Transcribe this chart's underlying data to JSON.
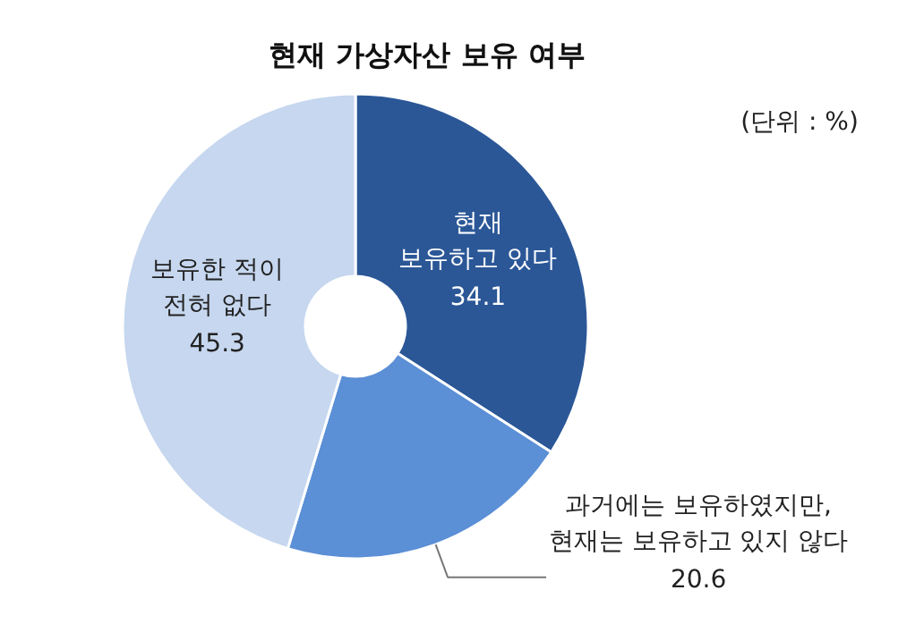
{
  "chart_data": {
    "type": "donut",
    "title": "현재 가상자산 보유 여부",
    "annotations": [
      "(단위 : %)"
    ],
    "categories": [
      "현재\n보유하고 있다",
      "과거에는 보유하였지만,\n현재는 보유하고 있지 않다",
      "보유한 적이\n전혀 없다"
    ],
    "values": [
      34.1,
      20.6,
      45.3
    ],
    "colors": [
      "#2b5797",
      "#5b8fd6",
      "#c6d7ef"
    ],
    "data_labels": true
  }
}
